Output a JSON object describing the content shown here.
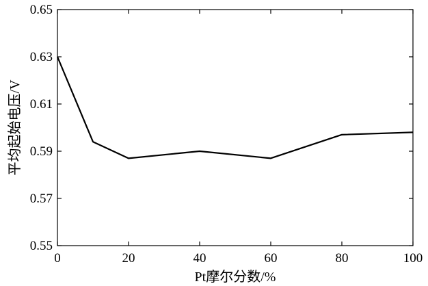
{
  "chart_data": {
    "type": "line",
    "xlabel": "Pt摩尔分数/%",
    "ylabel": "平均起始电压/V",
    "xlim": [
      0,
      100
    ],
    "ylim": [
      0.55,
      0.65
    ],
    "x_ticks": [
      0,
      20,
      40,
      60,
      80,
      100
    ],
    "y_ticks": [
      0.55,
      0.57,
      0.59,
      0.61,
      0.63,
      0.65
    ],
    "x_tick_labels": [
      "0",
      "20",
      "40",
      "60",
      "80",
      "100"
    ],
    "y_tick_labels": [
      "0.55",
      "0.57",
      "0.59",
      "0.61",
      "0.63",
      "0.65"
    ],
    "grid": false,
    "series": [
      {
        "x": [
          0,
          10,
          20,
          40,
          60,
          80,
          100
        ],
        "y": [
          0.63,
          0.594,
          0.587,
          0.59,
          0.587,
          0.597,
          0.598
        ],
        "color": "#000000"
      }
    ]
  }
}
